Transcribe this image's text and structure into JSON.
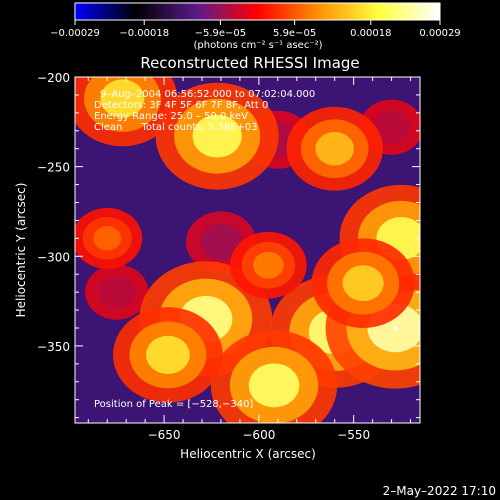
{
  "chart_data": {
    "type": "heatmap",
    "title": "Reconstructed RHESSI Image",
    "xlabel": "Heliocentric X (arcsec)",
    "ylabel": "Heliocentric Y (arcsec)",
    "xlim": [
      -697,
      -515
    ],
    "ylim": [
      -393,
      -200
    ],
    "x_ticks": [
      -650,
      -600,
      -550
    ],
    "y_ticks": [
      -200,
      -250,
      -300,
      -350
    ],
    "x_tick_labels": [
      "−650",
      "−600",
      "−550"
    ],
    "y_tick_labels": [
      "−200",
      "−250",
      "−300",
      "−350"
    ],
    "colorbar": {
      "range": [
        -0.00029,
        0.00029
      ],
      "ticks": [
        -0.00029,
        -0.00018,
        -5.9e-05,
        5.9e-05,
        0.00018,
        0.00029
      ],
      "tick_labels": [
        "−0.00029",
        "−0.00018",
        "−5.9e−05",
        "5.9e−05",
        "0.00018",
        "0.00029"
      ],
      "unit_label": "(photons cm⁻² s⁻¹ asec⁻²)",
      "colors": [
        "#0000ff",
        "#000000",
        "#5a1a8c",
        "#ff0000",
        "#ff9000",
        "#ffff40",
        "#ffffff"
      ]
    },
    "annotations": {
      "time_range": "9–Aug–2004 06:56:52.000 to 07:02:04.000",
      "detectors": "Detectors: 3F 4F 5F 6F 7F 8F, Att 0",
      "energy": "Energy Range: 25.0 – 50.0 keV",
      "method": "Clean      Total counts: 5.38E+03",
      "peak": "Position of Peak = [−528,−340]"
    },
    "peak": {
      "x": -528,
      "y": -340
    },
    "bright_regions": [
      {
        "x": -628,
        "y": -335,
        "value": 0.00027
      },
      {
        "x": -560,
        "y": -342,
        "value": 0.00026
      },
      {
        "x": -528,
        "y": -340,
        "value": 0.00029
      },
      {
        "x": -592,
        "y": -372,
        "value": 0.00025
      },
      {
        "x": -622,
        "y": -233,
        "value": 0.00024
      },
      {
        "x": -672,
        "y": -212,
        "value": 0.0002
      },
      {
        "x": -525,
        "y": -290,
        "value": 0.00024
      },
      {
        "x": -560,
        "y": -240,
        "value": 0.00016
      },
      {
        "x": -648,
        "y": -355,
        "value": 0.0002
      },
      {
        "x": -545,
        "y": -315,
        "value": 0.00018
      },
      {
        "x": -595,
        "y": -305,
        "value": 0.0001
      },
      {
        "x": -680,
        "y": -290,
        "value": 8e-05
      }
    ],
    "dark_regions": [
      {
        "x": -620,
        "y": -292,
        "value": -8e-05
      },
      {
        "x": -675,
        "y": -320,
        "value": -6e-05
      },
      {
        "x": -590,
        "y": -235,
        "value": -7e-05
      },
      {
        "x": -530,
        "y": -228,
        "value": -6e-05
      }
    ]
  },
  "footer": {
    "timestamp": "2–May–2022 17:10"
  }
}
